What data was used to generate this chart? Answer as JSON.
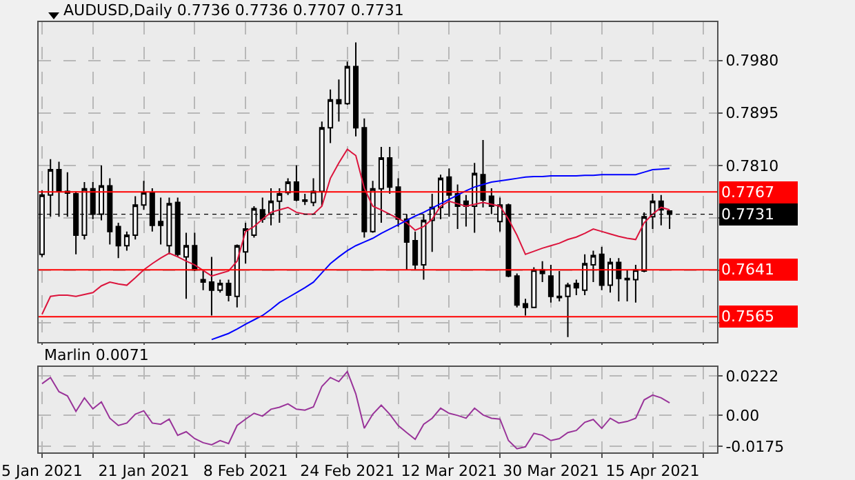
{
  "chart_data": [
    {
      "type": "candlestick",
      "title": "AUDUSD,Daily 0.7736 0.7736 0.7707 0.7731",
      "grid": true,
      "categories": [
        null,
        null,
        null,
        null,
        null,
        null,
        null,
        null,
        null,
        null,
        null,
        null,
        null,
        null,
        null,
        null,
        null,
        null,
        null,
        null,
        null,
        null,
        null,
        null,
        null,
        null,
        null,
        null,
        null,
        null,
        null,
        null,
        null,
        null,
        null,
        null,
        null,
        null,
        null,
        null,
        null,
        null,
        null,
        null,
        null,
        null,
        null,
        null,
        null,
        null,
        null,
        null,
        null,
        null,
        null,
        null,
        null,
        null,
        null,
        null,
        null,
        null,
        null,
        null,
        null,
        null,
        null,
        null,
        null,
        null,
        null,
        null,
        null,
        null,
        null
      ],
      "ohlc": [
        [
          0.7666,
          0.777,
          0.7662,
          0.7762
        ],
        [
          0.7762,
          0.782,
          0.7727,
          0.7803
        ],
        [
          0.7803,
          0.7816,
          0.7727,
          0.7768
        ],
        [
          0.7768,
          0.7799,
          0.7727,
          0.7765
        ],
        [
          0.7764,
          0.7768,
          0.7666,
          0.7697
        ],
        [
          0.7697,
          0.7783,
          0.769,
          0.7772
        ],
        [
          0.7772,
          0.7783,
          0.7723,
          0.7731
        ],
        [
          0.7731,
          0.781,
          0.7721,
          0.7777
        ],
        [
          0.7777,
          0.7789,
          0.7682,
          0.7703
        ],
        [
          0.7711,
          0.7717,
          0.766,
          0.768
        ],
        [
          0.768,
          0.7703,
          0.7672,
          0.7697
        ],
        [
          0.7697,
          0.776,
          0.769,
          0.7746
        ],
        [
          0.7746,
          0.7785,
          0.7738,
          0.7766
        ],
        [
          0.7766,
          0.7773,
          0.7703,
          0.7713
        ],
        [
          0.7719,
          0.7758,
          0.7682,
          0.7713
        ],
        [
          0.768,
          0.7758,
          0.7666,
          0.7748
        ],
        [
          0.775,
          0.7758,
          0.7662,
          0.7666
        ],
        [
          0.7662,
          0.7701,
          0.7594,
          0.768
        ],
        [
          0.768,
          0.7701,
          0.7639,
          0.7641
        ],
        [
          0.7625,
          0.7639,
          0.7608,
          0.7621
        ],
        [
          0.7621,
          0.7662,
          0.7567,
          0.7608
        ],
        [
          0.7608,
          0.7625,
          0.7604,
          0.7619
        ],
        [
          0.7619,
          0.7625,
          0.759,
          0.76
        ],
        [
          0.7598,
          0.7682,
          0.758,
          0.768
        ],
        [
          0.767,
          0.7717,
          0.7651,
          0.7707
        ],
        [
          0.7697,
          0.7744,
          0.7693,
          0.774
        ],
        [
          0.7738,
          0.7758,
          0.7717,
          0.7723
        ],
        [
          0.7731,
          0.7773,
          0.7713,
          0.7752
        ],
        [
          0.7752,
          0.7773,
          0.7717,
          0.7764
        ],
        [
          0.7766,
          0.7789,
          0.7762,
          0.7783
        ],
        [
          0.7783,
          0.781,
          0.7752,
          0.7754
        ],
        [
          0.7754,
          0.7764,
          0.7746,
          0.7752
        ],
        [
          0.775,
          0.7789,
          0.7744,
          0.7768
        ],
        [
          0.7768,
          0.7881,
          0.7744,
          0.7871
        ],
        [
          0.7871,
          0.7933,
          0.7846,
          0.7916
        ],
        [
          0.7916,
          0.7949,
          0.7881,
          0.791
        ],
        [
          0.791,
          0.7978,
          0.7908,
          0.797
        ],
        [
          0.797,
          0.8009,
          0.7857,
          0.7871
        ],
        [
          0.7871,
          0.7886,
          0.7693,
          0.7703
        ],
        [
          0.7703,
          0.7785,
          0.7701,
          0.7772
        ],
        [
          0.7772,
          0.784,
          0.7717,
          0.7822
        ],
        [
          0.7822,
          0.784,
          0.7764,
          0.7775
        ],
        [
          0.7775,
          0.7789,
          0.7711,
          0.7723
        ],
        [
          0.7723,
          0.7731,
          0.7641,
          0.7686
        ],
        [
          0.7688,
          0.7703,
          0.7641,
          0.7649
        ],
        [
          0.7649,
          0.7731,
          0.7625,
          0.7721
        ],
        [
          0.7721,
          0.7764,
          0.767,
          0.7742
        ],
        [
          0.7742,
          0.7795,
          0.7723,
          0.7789
        ],
        [
          0.7791,
          0.7805,
          0.7727,
          0.7762
        ],
        [
          0.7764,
          0.7779,
          0.7707,
          0.7744
        ],
        [
          0.7752,
          0.7762,
          0.7711,
          0.7744
        ],
        [
          0.7744,
          0.7814,
          0.7701,
          0.7797
        ],
        [
          0.7795,
          0.7851,
          0.7742,
          0.7754
        ],
        [
          0.776,
          0.7773,
          0.7731,
          0.7744
        ],
        [
          0.7719,
          0.7758,
          0.7703,
          0.7746
        ],
        [
          0.7746,
          0.7748,
          0.7629,
          0.7631
        ],
        [
          0.7631,
          0.7635,
          0.758,
          0.7584
        ],
        [
          0.7586,
          0.7594,
          0.7567,
          0.758
        ],
        [
          0.758,
          0.7645,
          0.758,
          0.7641
        ],
        [
          0.7641,
          0.7655,
          0.7621,
          0.7635
        ],
        [
          0.7631,
          0.7649,
          0.7588,
          0.7598
        ],
        [
          0.7598,
          0.7639,
          0.759,
          0.7596
        ],
        [
          0.7598,
          0.762,
          0.7532,
          0.7616
        ],
        [
          0.7619,
          0.7625,
          0.76,
          0.7612
        ],
        [
          0.7608,
          0.7666,
          0.76,
          0.7651
        ],
        [
          0.7649,
          0.7672,
          0.7621,
          0.7664
        ],
        [
          0.7666,
          0.7678,
          0.7608,
          0.7616
        ],
        [
          0.7616,
          0.766,
          0.7604,
          0.7653
        ],
        [
          0.7653,
          0.766,
          0.759,
          0.7627
        ],
        [
          0.7627,
          0.7641,
          0.759,
          0.7625
        ],
        [
          0.7625,
          0.7649,
          0.7588,
          0.7641
        ],
        [
          0.7639,
          0.7734,
          0.7637,
          0.7727
        ],
        [
          0.7727,
          0.7764,
          0.7707,
          0.7752
        ],
        [
          0.7752,
          0.7762,
          0.7713,
          0.7738
        ],
        [
          0.7736,
          0.7736,
          0.7707,
          0.7731
        ]
      ],
      "series": [
        {
          "type": "line",
          "color": "#dc143c",
          "values": [
            0.7569,
            0.7598,
            0.76,
            0.76,
            0.7598,
            0.7601,
            0.7604,
            0.7615,
            0.7621,
            0.7618,
            0.7616,
            0.7628,
            0.7641,
            0.7651,
            0.766,
            0.7668,
            0.7662,
            0.7655,
            0.7649,
            0.764,
            0.7631,
            0.7635,
            0.7639,
            0.7655,
            0.7703,
            0.7711,
            0.7723,
            0.7734,
            0.7738,
            0.7742,
            0.7734,
            0.7731,
            0.7731,
            0.7744,
            0.7789,
            0.7814,
            0.7836,
            0.7826,
            0.7773,
            0.7744,
            0.7738,
            0.7731,
            0.7724,
            0.7717,
            0.7705,
            0.7711,
            0.7723,
            0.7744,
            0.7752,
            0.7748,
            0.7744,
            0.7747,
            0.775,
            0.7747,
            0.7744,
            0.7723,
            0.7697,
            0.7666,
            0.7671,
            0.7676,
            0.768,
            0.7684,
            0.769,
            0.7694,
            0.77,
            0.7707,
            0.7703,
            0.7699,
            0.7695,
            0.7692,
            0.769,
            0.7717,
            0.7731,
            0.7742,
            0.7738
          ]
        },
        {
          "type": "line",
          "color": "#0000ff",
          "values": [
            null,
            null,
            null,
            null,
            null,
            null,
            null,
            null,
            null,
            null,
            null,
            null,
            null,
            null,
            null,
            null,
            null,
            null,
            null,
            null,
            0.7528,
            0.7533,
            0.7538,
            0.7545,
            0.7553,
            0.756,
            0.7567,
            0.7577,
            0.7588,
            0.7596,
            0.7604,
            0.7612,
            0.7621,
            0.7636,
            0.7651,
            0.7662,
            0.7672,
            0.768,
            0.7686,
            0.7692,
            0.77,
            0.7707,
            0.7714,
            0.7721,
            0.7728,
            0.7734,
            0.7741,
            0.7748,
            0.7755,
            0.7762,
            0.7769,
            0.7775,
            0.7779,
            0.7783,
            0.7785,
            0.7787,
            0.7789,
            0.7791,
            0.7792,
            0.7792,
            0.7793,
            0.7793,
            0.7793,
            0.7793,
            0.7794,
            0.7794,
            0.7795,
            0.7795,
            0.7795,
            0.7795,
            0.7795,
            0.7799,
            0.7803,
            0.7804,
            0.7805
          ]
        }
      ],
      "ylim": [
        0.7524,
        0.8042
      ],
      "yticks": [
        {
          "value": 0.798,
          "label": "0.7980"
        },
        0.7895,
        {
          "value": 0.781,
          "label": "0.7810"
        },
        {
          "value": 0.7725,
          "label": null
        },
        {
          "value": 0.764,
          "label": null
        },
        {
          "value": 0.7555,
          "label": null
        }
      ],
      "ref_lines": [
        {
          "axis": "y",
          "value": 0.7767,
          "label": "0.7767",
          "color": "#ff0000"
        },
        {
          "axis": "y",
          "value": 0.7641,
          "label": "0.7641",
          "color": "#ff0000"
        },
        {
          "axis": "y",
          "value": 0.7565,
          "label": "0.7565",
          "color": "#ff0000"
        },
        {
          "axis": "y",
          "value": 0.7731,
          "label": "0.7731",
          "color": "#000000",
          "line_style": "dotted"
        }
      ]
    },
    {
      "type": "line",
      "title": "Marlin 0.0071",
      "grid": true,
      "marker": "none",
      "categories": [
        "5 Jan 2021",
        null,
        null,
        null,
        null,
        null,
        null,
        null,
        null,
        null,
        null,
        null,
        "21 Jan 2021",
        null,
        null,
        null,
        null,
        null,
        null,
        null,
        null,
        null,
        null,
        null,
        "8 Feb 2021",
        null,
        null,
        null,
        null,
        null,
        null,
        null,
        null,
        null,
        null,
        null,
        "24 Feb 2021",
        null,
        null,
        null,
        null,
        null,
        null,
        null,
        null,
        null,
        null,
        null,
        "12 Mar 2021",
        null,
        null,
        null,
        null,
        null,
        null,
        null,
        null,
        null,
        null,
        null,
        "30 Mar 2021",
        null,
        null,
        null,
        null,
        null,
        null,
        null,
        null,
        null,
        null,
        null,
        "15 Apr 2021",
        null,
        null
      ],
      "series": [
        {
          "color": "#993399",
          "values": [
            0.0179,
            0.0214,
            0.0134,
            0.011,
            0.0023,
            0.0099,
            0.0037,
            0.0076,
            -0.0016,
            -0.0057,
            -0.0043,
            0.0007,
            0.0026,
            -0.0043,
            -0.005,
            -0.0021,
            -0.0112,
            -0.0092,
            -0.0131,
            -0.0154,
            -0.0166,
            -0.0142,
            -0.0159,
            -0.0057,
            -0.0021,
            0.0012,
            -0.0004,
            0.0035,
            0.0046,
            0.0065,
            0.0035,
            0.003,
            0.0048,
            0.0164,
            0.0214,
            0.0191,
            0.0248,
            0.0122,
            -0.0073,
            0.0007,
            0.0058,
            0.0007,
            -0.0057,
            -0.0097,
            -0.0135,
            -0.005,
            -0.0016,
            0.0041,
            0.0012,
            0,
            -0.0016,
            0.0041,
            0.0003,
            -0.0016,
            -0.0021,
            -0.0142,
            -0.0188,
            -0.0177,
            -0.0101,
            -0.0112,
            -0.0142,
            -0.0131,
            -0.0097,
            -0.0085,
            -0.0039,
            -0.0023,
            -0.0073,
            -0.0016,
            -0.0043,
            -0.0034,
            -0.0016,
            0.0088,
            0.0115,
            0.0099,
            0.0071
          ]
        }
      ],
      "ylim": [
        -0.0209,
        0.0274
      ],
      "yticks": [
        0.0222,
        {
          "value": 0,
          "label": "0.00"
        },
        -0.0175
      ]
    }
  ]
}
